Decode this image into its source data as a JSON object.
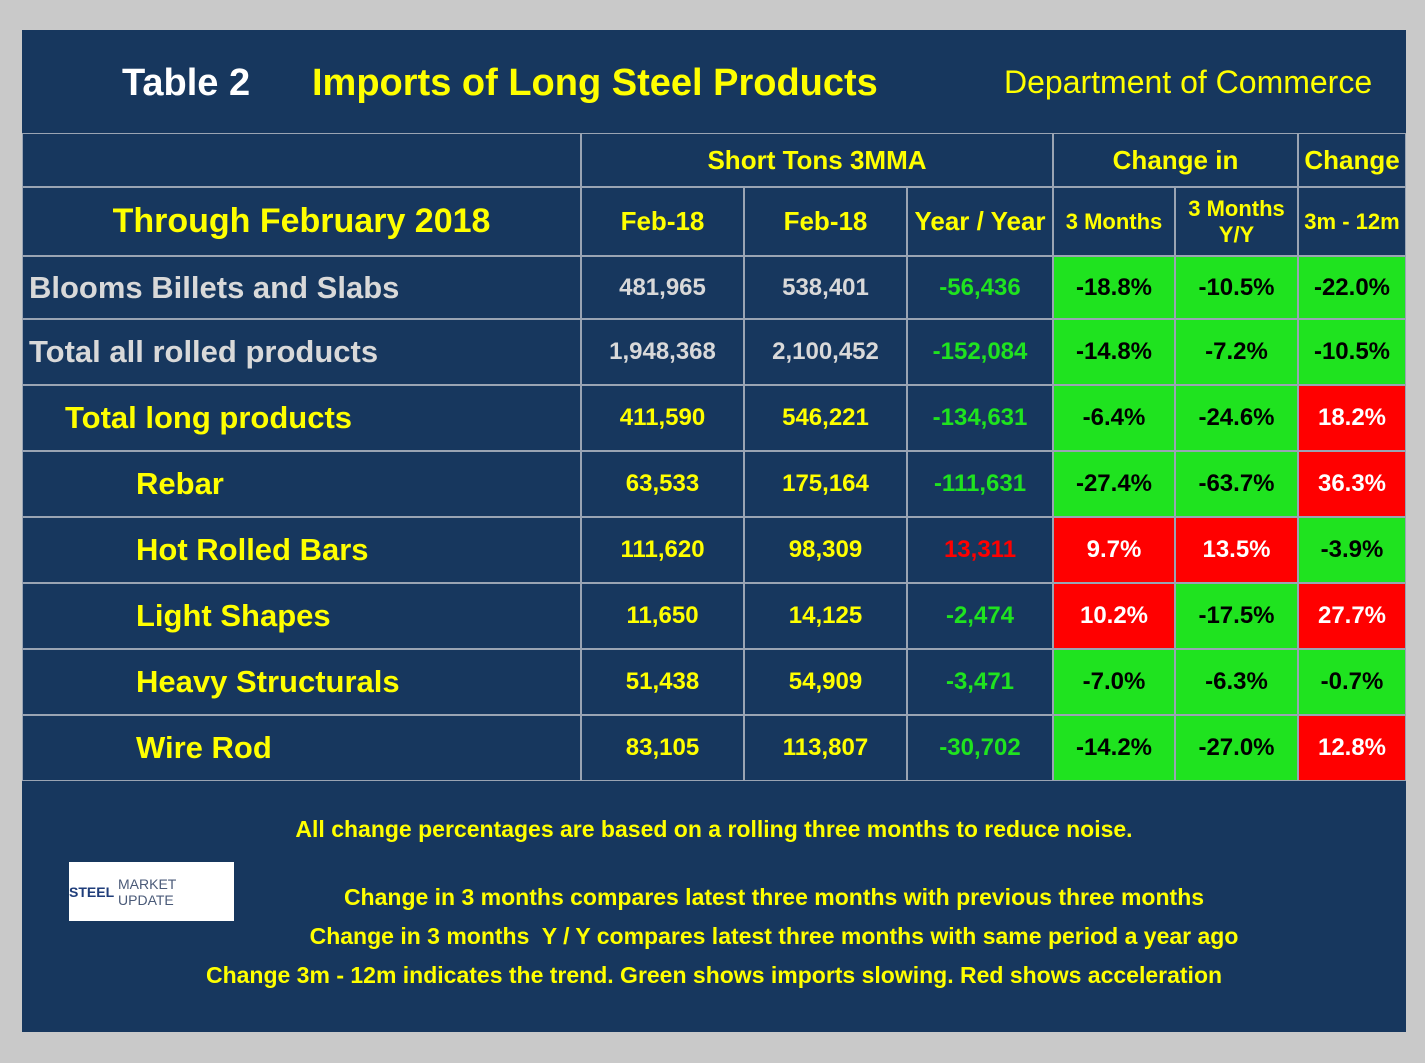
{
  "header": {
    "table_label": "Table 2",
    "title": "Imports of Long Steel Products",
    "source": "Department of Commerce"
  },
  "table": {
    "group_headers": [
      "Short Tons 3MMA",
      "Change in",
      "Change"
    ],
    "row_header": "Through February 2018",
    "columns": [
      [
        "Feb-18"
      ],
      [
        "Feb-18"
      ],
      [
        "Year / Year"
      ],
      [
        "3 Months"
      ],
      [
        "3 Months",
        "Y/Y"
      ],
      [
        "3m - 12m"
      ]
    ],
    "rows": [
      {
        "label": "Blooms Billets and Slabs",
        "cells": [
          "481,965",
          "538,401",
          "-56,436",
          "-18.8%",
          "-10.5%",
          "-22.0%"
        ],
        "colors": [
          "#1fe31f",
          "#1fe31f",
          "#1fe31f",
          "#1fe31f"
        ]
      },
      {
        "label": "Total all rolled products",
        "cells": [
          "1,948,368",
          "2,100,452",
          "-152,084",
          "-14.8%",
          "-7.2%",
          "-10.5%"
        ],
        "colors": [
          "#1fe31f",
          "#1fe31f",
          "#1fe31f",
          "#1fe31f"
        ]
      },
      {
        "label": "Total long products",
        "cells": [
          "411,590",
          "546,221",
          "-134,631",
          "-6.4%",
          "-24.6%",
          "18.2%"
        ],
        "colors": [
          "#1fe31f",
          "#1fe31f",
          "#1fe31f",
          "#ff0000"
        ]
      },
      {
        "label": "Rebar",
        "cells": [
          "63,533",
          "175,164",
          "-111,631",
          "-27.4%",
          "-63.7%",
          "36.3%"
        ],
        "colors": [
          "#1fe31f",
          "#1fe31f",
          "#1fe31f",
          "#ff0000"
        ]
      },
      {
        "label": "Hot Rolled Bars",
        "cells": [
          "111,620",
          "98,309",
          "13,311",
          "9.7%",
          "13.5%",
          "-3.9%"
        ],
        "colors": [
          "#ff0000",
          "#ff0000",
          "#ff0000",
          "#1fe31f"
        ]
      },
      {
        "label": "Light Shapes",
        "cells": [
          "11,650",
          "14,125",
          "-2,474",
          "10.2%",
          "-17.5%",
          "27.7%"
        ],
        "colors": [
          "#1fe31f",
          "#ff0000",
          "#1fe31f",
          "#ff0000"
        ]
      },
      {
        "label": "Heavy Structurals",
        "cells": [
          "51,438",
          "54,909",
          "-3,471",
          "-7.0%",
          "-6.3%",
          "-0.7%"
        ],
        "colors": [
          "#1fe31f",
          "#1fe31f",
          "#1fe31f",
          "#1fe31f"
        ]
      },
      {
        "label": "Wire Rod",
        "cells": [
          "83,105",
          "113,807",
          "-30,702",
          "-14.2%",
          "-27.0%",
          "12.8%"
        ],
        "colors": [
          "#1fe31f",
          "#1fe31f",
          "#1fe31f",
          "#ff0000"
        ]
      }
    ]
  },
  "notes": [
    "All change percentages are based on a rolling three months to reduce noise.",
    "Change in 3 months compares latest three months with previous three months",
    "Change in 3 months  Y / Y compares latest three months with same period a year ago",
    "Change 3m - 12m indicates the trend. Green shows imports slowing. Red shows acceleration"
  ],
  "logo": {
    "brand": "STEEL",
    "rest": "MARKET UPDATE"
  }
}
